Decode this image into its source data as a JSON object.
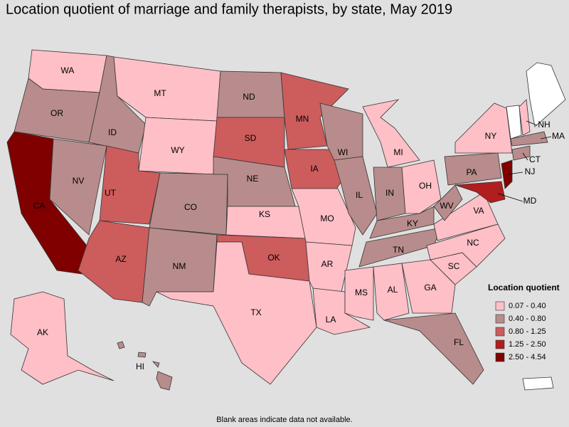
{
  "map": {
    "title": "Location quotient of marriage and family therapists, by state, May 2019",
    "legend": {
      "title": "Location quotient",
      "items": [
        {
          "label": "0.07 - 0.40",
          "color": "#ffbfc7"
        },
        {
          "label": "0.40 - 0.80",
          "color": "#b88c8c"
        },
        {
          "label": "0.80 - 1.25",
          "color": "#cd5c5c"
        },
        {
          "label": "1.25 - 2.50",
          "color": "#b01e1e"
        },
        {
          "label": "2.50 - 4.54",
          "color": "#800000"
        }
      ]
    },
    "states": [
      {
        "label": "WA",
        "class": 0
      },
      {
        "label": "OR",
        "class": 1
      },
      {
        "label": "CA",
        "class": 4
      },
      {
        "label": "NV",
        "class": 1
      },
      {
        "label": "ID",
        "class": 1
      },
      {
        "label": "MT",
        "class": 0
      },
      {
        "label": "WY",
        "class": 0
      },
      {
        "label": "UT",
        "class": 2
      },
      {
        "label": "CO",
        "class": 1
      },
      {
        "label": "AZ",
        "class": 2
      },
      {
        "label": "NM",
        "class": 1
      },
      {
        "label": "ND",
        "class": 1
      },
      {
        "label": "SD",
        "class": 2
      },
      {
        "label": "NE",
        "class": 1
      },
      {
        "label": "KS",
        "class": 0
      },
      {
        "label": "OK",
        "class": 2
      },
      {
        "label": "TX",
        "class": 0
      },
      {
        "label": "MN",
        "class": 2
      },
      {
        "label": "IA",
        "class": 2
      },
      {
        "label": "MO",
        "class": 0
      },
      {
        "label": "AR",
        "class": 0
      },
      {
        "label": "LA",
        "class": 0
      },
      {
        "label": "WI",
        "class": 1
      },
      {
        "label": "IL",
        "class": 1
      },
      {
        "label": "MI",
        "class": 0
      },
      {
        "label": "IN",
        "class": 1
      },
      {
        "label": "OH",
        "class": 0
      },
      {
        "label": "KY",
        "class": 1
      },
      {
        "label": "TN",
        "class": 1
      },
      {
        "label": "MS",
        "class": 0
      },
      {
        "label": "AL",
        "class": 0
      },
      {
        "label": "GA",
        "class": 0
      },
      {
        "label": "FL",
        "class": 1
      },
      {
        "label": "SC",
        "class": 0
      },
      {
        "label": "NC",
        "class": 0
      },
      {
        "label": "VA",
        "class": 0
      },
      {
        "label": "WV",
        "class": 1
      },
      {
        "label": "PA",
        "class": 1
      },
      {
        "label": "NY",
        "class": 0
      },
      {
        "label": "NJ",
        "class": 4
      },
      {
        "label": "MD",
        "class": 3
      },
      {
        "label": "CT",
        "class": 1
      },
      {
        "label": "MA",
        "class": 1
      },
      {
        "label": "NH",
        "class": 0
      },
      {
        "label": "AK",
        "class": 0
      },
      {
        "label": "HI",
        "class": 1
      }
    ],
    "footnote": "Blank areas indicate data not available."
  }
}
